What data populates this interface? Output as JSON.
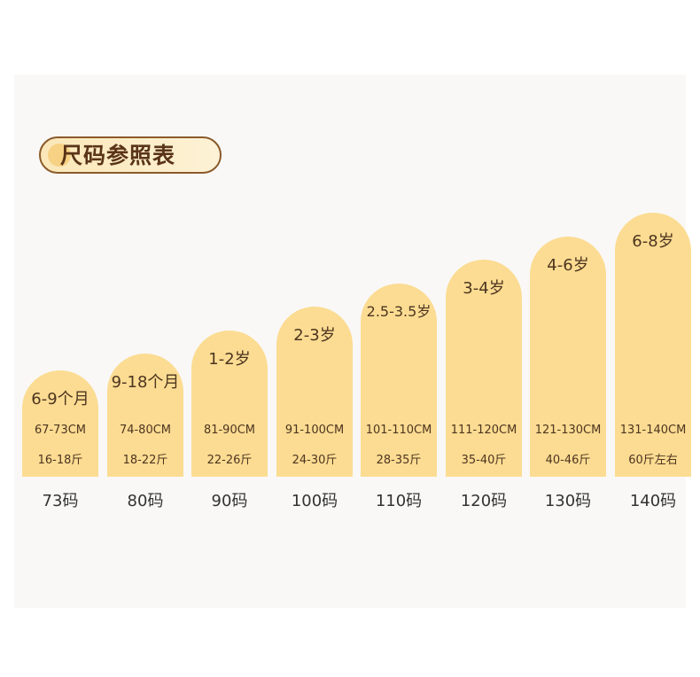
{
  "title": "尺码参照表",
  "colors": {
    "bar": "#fbdc92",
    "title_border": "#8a5a2b",
    "text": "#4e3520",
    "panel": "#f9f8f6"
  },
  "chart_data": {
    "type": "bar",
    "title": "尺码参照表",
    "categories": [
      "73码",
      "80码",
      "90码",
      "100码",
      "110码",
      "120码",
      "130码",
      "140码"
    ],
    "values": [
      73,
      80,
      90,
      100,
      110,
      120,
      130,
      140
    ],
    "ages": [
      "6-9个月",
      "9-18个月",
      "1-2岁",
      "2-3岁",
      "2.5-3.5岁",
      "3-4岁",
      "4-6岁",
      "6-8岁"
    ],
    "heights": [
      "67-73CM",
      "74-80CM",
      "81-90CM",
      "91-100CM",
      "101-110CM",
      "111-120CM",
      "121-130CM",
      "131-140CM"
    ],
    "weights": [
      "16-18斤",
      "18-22斤",
      "22-26斤",
      "24-30斤",
      "28-35斤",
      "35-40斤",
      "40-46斤",
      "60斤左右"
    ]
  }
}
